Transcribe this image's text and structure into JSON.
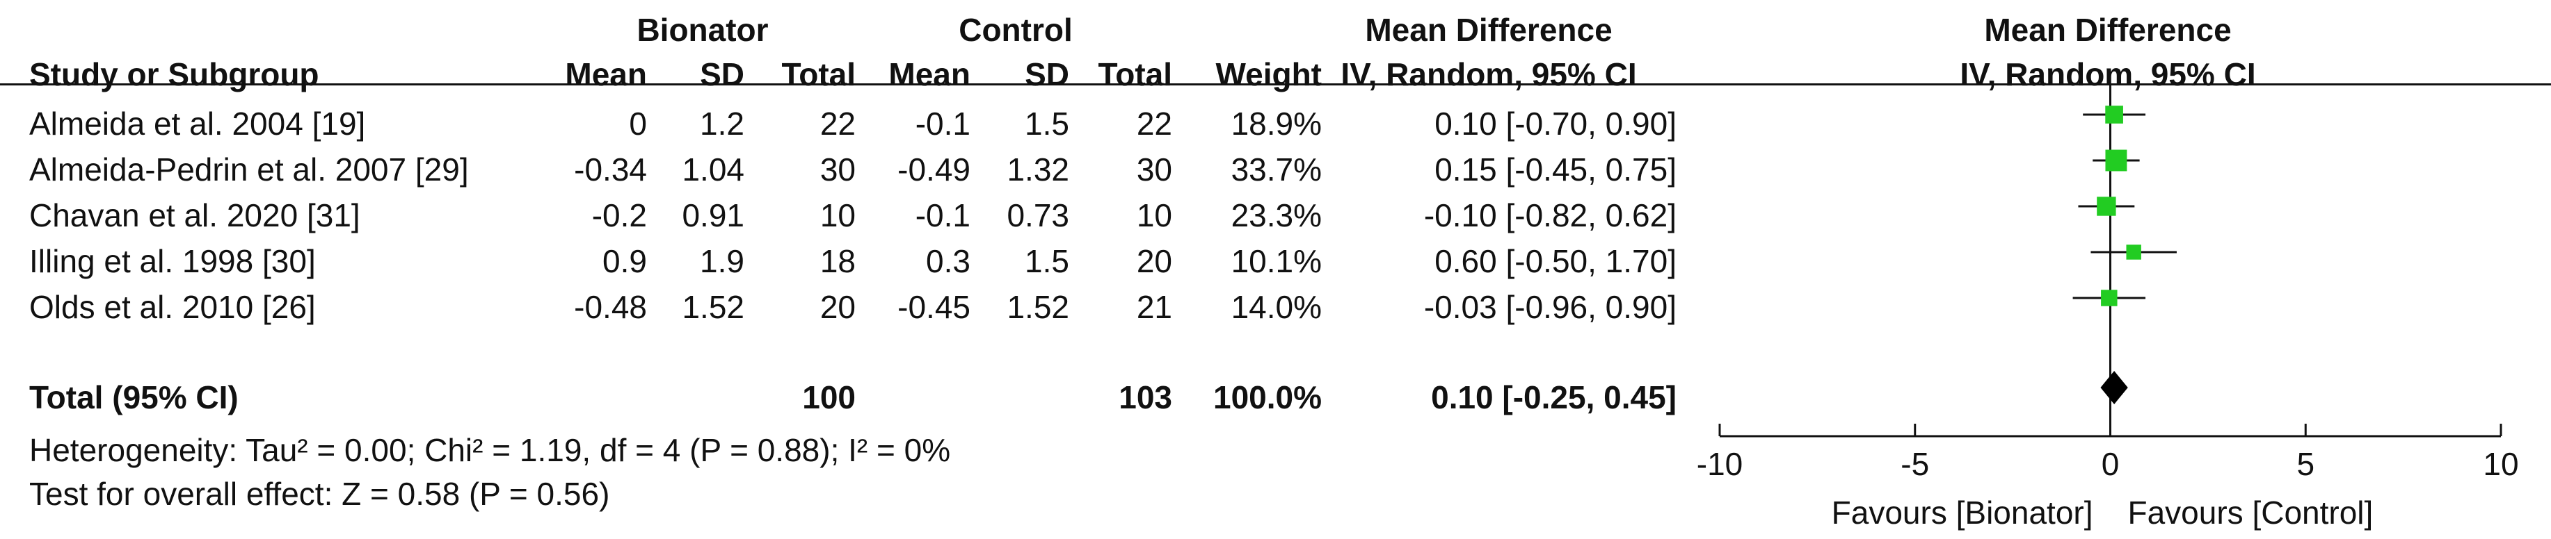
{
  "header": {
    "group1": "Bionator",
    "group2": "Control",
    "md_title": "Mean Difference",
    "plot_title": "Mean Difference",
    "study_col": "Study or Subgroup",
    "mean1": "Mean",
    "sd1": "SD",
    "total1": "Total",
    "mean2": "Mean",
    "sd2": "SD",
    "total2": "Total",
    "weight": "Weight",
    "md_method": "IV, Random, 95% CI",
    "plot_method": "IV, Random, 95% CI"
  },
  "rows": [
    {
      "study": "Almeida et al. 2004 [19]",
      "mean1": "0",
      "sd1": "1.2",
      "total1": "22",
      "mean2": "-0.1",
      "sd2": "1.5",
      "total2": "22",
      "weight": "18.9%",
      "ci": "0.10 [-0.70, 0.90]"
    },
    {
      "study": "Almeida-Pedrin et al. 2007 [29]",
      "mean1": "-0.34",
      "sd1": "1.04",
      "total1": "30",
      "mean2": "-0.49",
      "sd2": "1.32",
      "total2": "30",
      "weight": "33.7%",
      "ci": "0.15 [-0.45, 0.75]"
    },
    {
      "study": "Chavan et al. 2020 [31]",
      "mean1": "-0.2",
      "sd1": "0.91",
      "total1": "10",
      "mean2": "-0.1",
      "sd2": "0.73",
      "total2": "10",
      "weight": "23.3%",
      "ci": "-0.10 [-0.82, 0.62]"
    },
    {
      "study": "Illing et al. 1998 [30]",
      "mean1": "0.9",
      "sd1": "1.9",
      "total1": "18",
      "mean2": "0.3",
      "sd2": "1.5",
      "total2": "20",
      "weight": "10.1%",
      "ci": "0.60 [-0.50, 1.70]"
    },
    {
      "study": "Olds et al. 2010 [26]",
      "mean1": "-0.48",
      "sd1": "1.52",
      "total1": "20",
      "mean2": "-0.45",
      "sd2": "1.52",
      "total2": "21",
      "weight": "14.0%",
      "ci": "-0.03 [-0.96, 0.90]"
    }
  ],
  "total": {
    "label": "Total (95% CI)",
    "total1": "100",
    "total2": "103",
    "weight": "100.0%",
    "ci": "0.10 [-0.25, 0.45]"
  },
  "heterogeneity": "Heterogeneity: Tau² = 0.00; Chi² = 1.19, df = 4 (P = 0.88); I² = 0%",
  "overall_effect": "Test for overall effect: Z = 0.58 (P = 0.56)",
  "favours_left": "Favours [Bionator]",
  "favours_right": "Favours [Control]",
  "colors": {
    "marker": "#22cc22",
    "diamond": "#000000",
    "line": "#111111"
  },
  "chart_data": {
    "type": "forest",
    "xlim": [
      -10,
      10
    ],
    "ticks": [
      -10,
      -5,
      0,
      5,
      10
    ],
    "tick_labels": [
      "-10",
      "-5",
      "0",
      "5",
      "10"
    ],
    "studies": [
      {
        "name": "Almeida et al. 2004 [19]",
        "md": 0.1,
        "lo": -0.7,
        "hi": 0.9,
        "weight": 18.9
      },
      {
        "name": "Almeida-Pedrin et al. 2007 [29]",
        "md": 0.15,
        "lo": -0.45,
        "hi": 0.75,
        "weight": 33.7
      },
      {
        "name": "Chavan et al. 2020 [31]",
        "md": -0.1,
        "lo": -0.82,
        "hi": 0.62,
        "weight": 23.3
      },
      {
        "name": "Illing et al. 1998 [30]",
        "md": 0.6,
        "lo": -0.5,
        "hi": 1.7,
        "weight": 10.1
      },
      {
        "name": "Olds et al. 2010 [26]",
        "md": -0.03,
        "lo": -0.96,
        "hi": 0.9,
        "weight": 14.0
      }
    ],
    "pooled": {
      "md": 0.1,
      "lo": -0.25,
      "hi": 0.45
    }
  }
}
